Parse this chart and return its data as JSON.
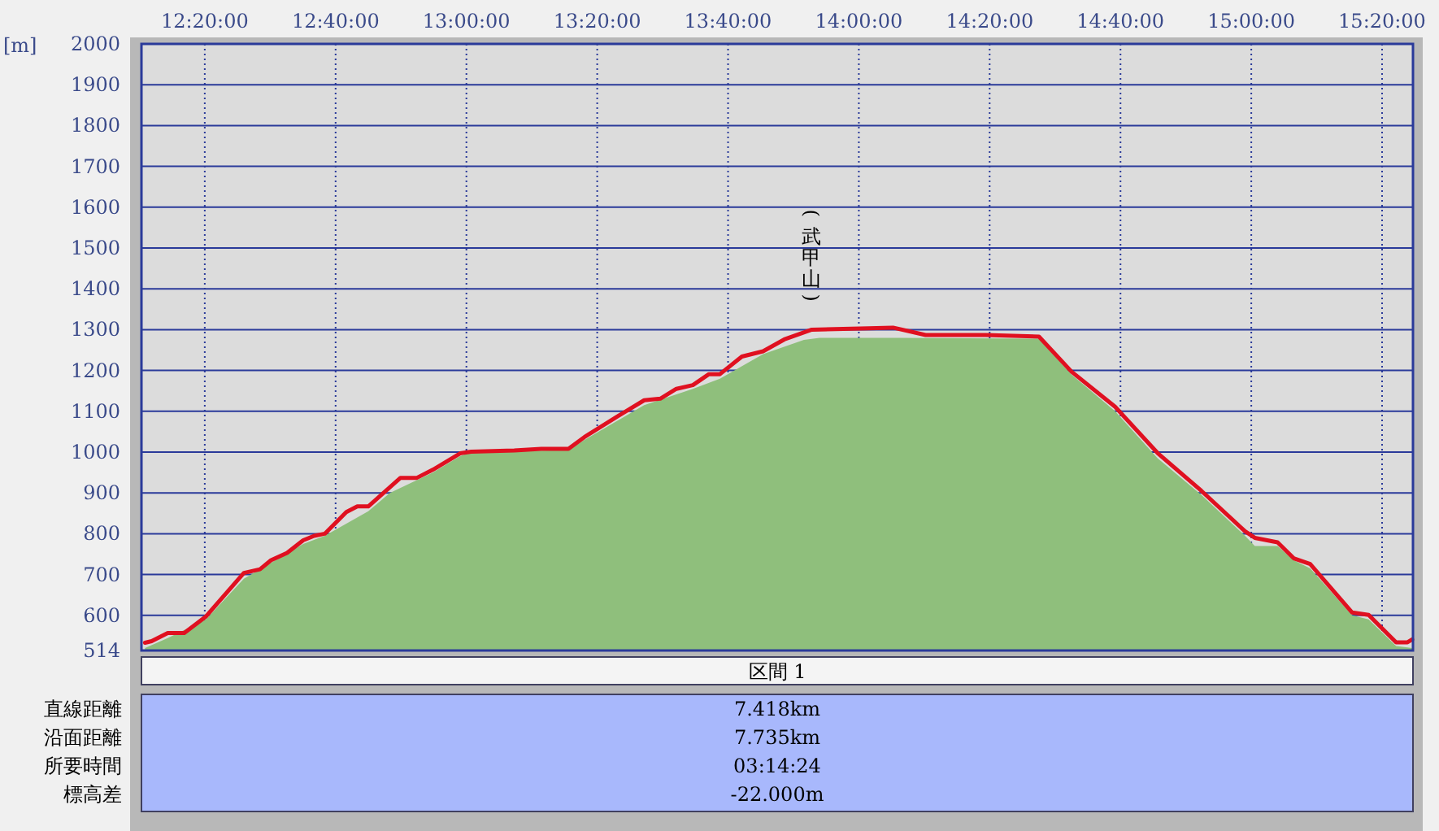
{
  "chart_data": [
    {
      "type": "area",
      "ylabel": "[m]",
      "series": [
        {
          "type": "area",
          "color": "#8fbf7c",
          "x": [
            12.181,
            12.24,
            12.336,
            12.433,
            12.584,
            12.639,
            12.75,
            12.805,
            12.915,
            12.984,
            13.012,
            13.26,
            13.301,
            13.453,
            13.577,
            13.646,
            13.756,
            13.86,
            13.9,
            14.1,
            14.459,
            14.542,
            14.653,
            14.761,
            14.873,
            14.984,
            15.009,
            15.067,
            15.108,
            15.15,
            15.257,
            15.299,
            15.369,
            15.41
          ],
          "values": [
            520,
            545,
            590,
            690,
            775,
            795,
            855,
            900,
            950,
            990,
            1000,
            1005,
            1030,
            1115,
            1155,
            1180,
            1240,
            1275,
            1280,
            1280,
            1278,
            1190,
            1100,
            985,
            895,
            795,
            770,
            770,
            735,
            715,
            600,
            590,
            525,
            520
          ]
        },
        {
          "type": "line",
          "color": "#e01020",
          "x": [
            12.181,
            12.198,
            12.239,
            12.281,
            12.336,
            12.433,
            12.474,
            12.502,
            12.543,
            12.584,
            12.612,
            12.639,
            12.694,
            12.722,
            12.75,
            12.832,
            12.874,
            12.915,
            12.984,
            13.012,
            13.122,
            13.191,
            13.26,
            13.301,
            13.384,
            13.453,
            13.494,
            13.535,
            13.577,
            13.618,
            13.646,
            13.702,
            13.756,
            13.81,
            13.88,
            14.004,
            14.087,
            14.17,
            14.323,
            14.459,
            14.542,
            14.653,
            14.761,
            14.873,
            14.984,
            15.009,
            15.067,
            15.108,
            15.15,
            15.257,
            15.299,
            15.369,
            15.398,
            15.41
          ],
          "values": [
            533,
            537,
            557,
            557,
            597,
            704,
            713,
            735,
            753,
            784,
            795,
            800,
            853,
            867,
            867,
            937,
            937,
            957,
            997,
            1001,
            1004,
            1008,
            1008,
            1037,
            1087,
            1127,
            1131,
            1155,
            1164,
            1191,
            1191,
            1234,
            1247,
            1276,
            1300,
            1303,
            1305,
            1287,
            1287,
            1283,
            1197,
            1111,
            998,
            905,
            806,
            790,
            779,
            740,
            726,
            607,
            601,
            534,
            534,
            541
          ]
        }
      ],
      "xlim": [
        12.172,
        15.412
      ],
      "ylim": [
        514,
        2000
      ],
      "xticks": [
        {
          "value": 12.3333,
          "label": "12:20:00"
        },
        {
          "value": 12.6667,
          "label": "12:40:00"
        },
        {
          "value": 13,
          "label": "13:00:00"
        },
        {
          "value": 13.3333,
          "label": "13:20:00"
        },
        {
          "value": 13.6667,
          "label": "13:40:00"
        },
        {
          "value": 14,
          "label": "14:00:00"
        },
        {
          "value": 14.3333,
          "label": "14:20:00"
        },
        {
          "value": 14.6667,
          "label": "14:40:00"
        },
        {
          "value": 15,
          "label": "15:00:00"
        },
        {
          "value": 15.3333,
          "label": "15:20:00"
        }
      ],
      "yticks": [
        514,
        600,
        700,
        800,
        900,
        1000,
        1100,
        1200,
        1300,
        1400,
        1500,
        1600,
        1700,
        1800,
        1900,
        2000
      ],
      "grid": true,
      "annotations": [
        {
          "text": "(武甲山)",
          "x": 13.88,
          "y": 1300
        }
      ]
    },
    {
      "type": "other",
      "title": "区間 1",
      "annotations": [
        "直線距離",
        "7.418km",
        "沿面距離",
        "7.735km",
        "所要時間",
        "03:14:24",
        "標高差",
        "-22.000m"
      ]
    }
  ]
}
